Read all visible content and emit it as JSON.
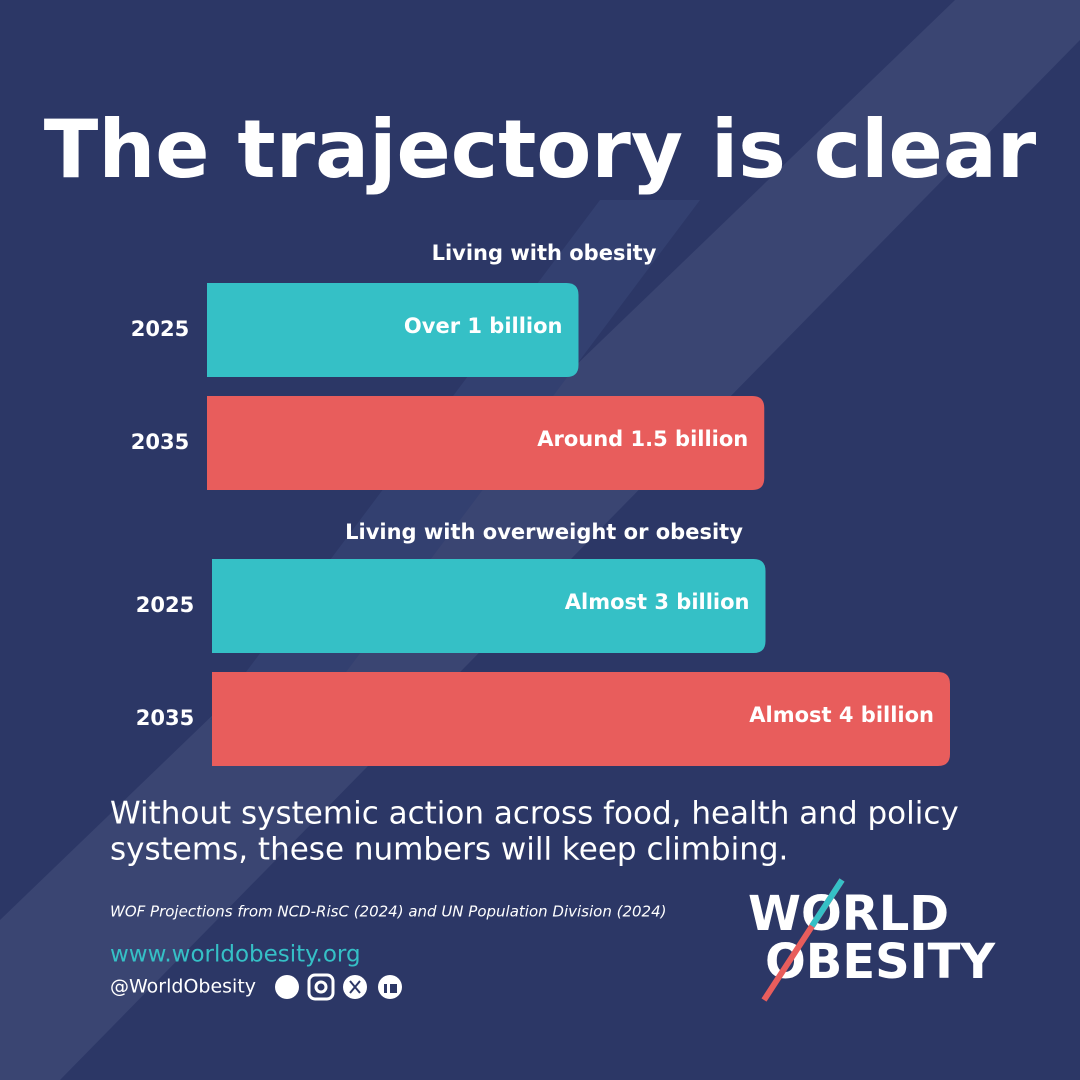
{
  "title": "The trajectory is clear",
  "chart_data": [
    {
      "type": "bar",
      "orientation": "horizontal",
      "subtitle": "Living with obesity",
      "categories": [
        "2025",
        "2035"
      ],
      "values": [
        1,
        1.5
      ],
      "value_labels": [
        "Over 1 billion",
        "Around 1.5 billion"
      ],
      "colors": [
        "#35c0c6",
        "#e85d5c"
      ],
      "xlim": [
        0,
        2
      ]
    },
    {
      "type": "bar",
      "orientation": "horizontal",
      "subtitle": "Living with overweight or obesity",
      "categories": [
        "2025",
        "2035"
      ],
      "values": [
        3,
        4
      ],
      "value_labels": [
        "Almost 3 billion",
        "Almost 4 billion"
      ],
      "colors": [
        "#35c0c6",
        "#e85d5c"
      ],
      "xlim": [
        0,
        4
      ]
    }
  ],
  "note": [
    "Without systemic action across food, health and policy",
    "systems, these numbers will keep climbing."
  ],
  "source": "WOF Projections from NCD-RisC (2024) and UN Population Division (2024)",
  "website": "www.worldobesity.org",
  "handle": "@WorldObesity",
  "logo": [
    "WORLD",
    "OBESITY"
  ]
}
